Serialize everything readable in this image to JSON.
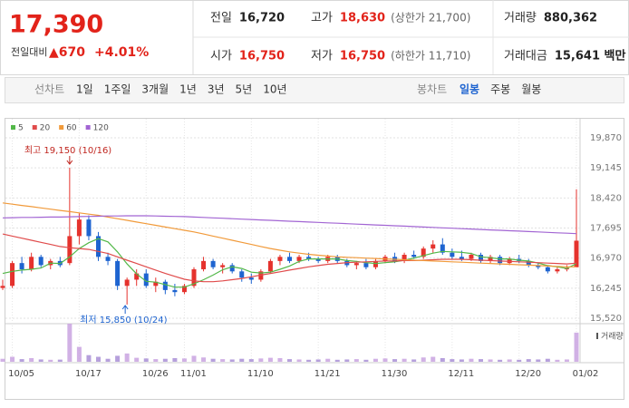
{
  "header": {
    "price": "17,390",
    "change_label": "전일대비",
    "change": "▲670",
    "change_pct": "+4.01%",
    "items": [
      {
        "label": "전일",
        "value": "16,720"
      },
      {
        "label": "고가",
        "value": "18,630",
        "extra": "(상한가 21,700)"
      },
      {
        "label": "거래량",
        "value": "880,362"
      },
      {
        "label": "시가",
        "value": "16,750"
      },
      {
        "label": "저가",
        "value": "16,750",
        "extra": "(하한가 11,710)"
      },
      {
        "label": "거래대금",
        "value": "15,641 백만"
      }
    ]
  },
  "tabs": {
    "line_label": "선차트",
    "line": [
      "1일",
      "1주일",
      "3개월",
      "1년",
      "3년",
      "5년",
      "10년"
    ],
    "candle_label": "봉차트",
    "candle": [
      "일봉",
      "주봉",
      "월봉"
    ],
    "active": "일봉"
  },
  "chart_data": {
    "type": "candlestick",
    "categories": [
      null,
      "10/05",
      null,
      null,
      null,
      null,
      null,
      null,
      "10/17",
      null,
      null,
      null,
      null,
      null,
      null,
      "10/26",
      null,
      null,
      null,
      "11/01",
      null,
      null,
      null,
      null,
      null,
      null,
      "11/10",
      null,
      null,
      null,
      null,
      null,
      null,
      "11/21",
      null,
      null,
      null,
      null,
      null,
      null,
      "11/30",
      null,
      null,
      null,
      null,
      null,
      null,
      "12/11",
      null,
      null,
      null,
      null,
      null,
      null,
      "12/20",
      null,
      null,
      null,
      null,
      null,
      "01/02"
    ],
    "open": [
      16250,
      16300,
      16850,
      16700,
      17000,
      16800,
      16900,
      16850,
      17500,
      17900,
      17500,
      17000,
      16900,
      16300,
      16450,
      16600,
      16300,
      16400,
      16200,
      16150,
      16300,
      16700,
      16900,
      16750,
      16800,
      16650,
      16500,
      16450,
      16650,
      16900,
      17000,
      16900,
      17000,
      16950,
      16900,
      17000,
      16900,
      16800,
      16850,
      16750,
      16900,
      17000,
      16900,
      17050,
      17000,
      17200,
      17300,
      17100,
      17000,
      16950,
      17050,
      16900,
      17000,
      16850,
      16950,
      16900,
      16800,
      16750,
      16650,
      16700,
      16750
    ],
    "high": [
      16450,
      16900,
      17000,
      17100,
      17050,
      16950,
      17000,
      19150,
      18050,
      18000,
      17600,
      17100,
      16950,
      16500,
      16700,
      16700,
      16500,
      16450,
      16350,
      16350,
      16750,
      17000,
      16950,
      16850,
      16850,
      16700,
      16600,
      16700,
      16950,
      17050,
      17100,
      17050,
      17100,
      17000,
      17050,
      17050,
      16950,
      16900,
      16950,
      16950,
      17050,
      17100,
      17100,
      17150,
      17250,
      17400,
      17450,
      17200,
      17150,
      17100,
      17100,
      17050,
      17050,
      17000,
      17050,
      16950,
      16850,
      16800,
      16750,
      16800,
      18630
    ],
    "low": [
      16200,
      16250,
      16600,
      16650,
      16750,
      16700,
      16750,
      16800,
      17300,
      17400,
      16900,
      16800,
      16200,
      15850,
      16300,
      16250,
      16150,
      16100,
      16050,
      16100,
      16250,
      16650,
      16700,
      16600,
      16600,
      16400,
      16350,
      16400,
      16600,
      16800,
      16850,
      16850,
      16900,
      16850,
      16850,
      16850,
      16750,
      16700,
      16700,
      16700,
      16850,
      16850,
      16850,
      16950,
      16950,
      17100,
      17050,
      16950,
      16900,
      16900,
      16850,
      16850,
      16800,
      16800,
      16850,
      16750,
      16700,
      16600,
      16600,
      16650,
      16750
    ],
    "close": [
      16300,
      16850,
      16700,
      17000,
      16800,
      16900,
      16800,
      17500,
      17900,
      17500,
      17000,
      16900,
      16300,
      16450,
      16600,
      16300,
      16400,
      16200,
      16150,
      16300,
      16700,
      16900,
      16750,
      16800,
      16650,
      16500,
      16450,
      16650,
      16900,
      17000,
      16900,
      17000,
      16950,
      16900,
      17000,
      16900,
      16800,
      16850,
      16750,
      16900,
      17000,
      16900,
      17050,
      17000,
      17200,
      17300,
      17100,
      17000,
      16950,
      17050,
      16900,
      17000,
      16850,
      16950,
      16900,
      16800,
      16750,
      16650,
      16700,
      16720,
      17390
    ],
    "volume": [
      90000,
      150000,
      80000,
      110000,
      70000,
      60000,
      65000,
      1150000,
      450000,
      200000,
      150000,
      90000,
      180000,
      250000,
      120000,
      100000,
      80000,
      90000,
      110000,
      100000,
      180000,
      130000,
      90000,
      80000,
      70000,
      90000,
      80000,
      100000,
      120000,
      110000,
      80000,
      70000,
      60000,
      70000,
      90000,
      60000,
      70000,
      80000,
      60000,
      90000,
      100000,
      80000,
      90000,
      70000,
      130000,
      150000,
      110000,
      80000,
      70000,
      90000,
      80000,
      70000,
      60000,
      70000,
      60000,
      80000,
      70000,
      90000,
      60000,
      70000,
      880362
    ],
    "volume_label": "거래량",
    "up_color": "#e5322d",
    "down_color": "#1e64d0",
    "series": [
      {
        "name": "5",
        "color": "#52b848",
        "values": [
          16600,
          16650,
          16680,
          16700,
          16730,
          16850,
          16840,
          17000,
          17200,
          17340,
          17440,
          17360,
          17120,
          16830,
          16590,
          16410,
          16390,
          16330,
          16270,
          16270,
          16350,
          16450,
          16560,
          16690,
          16760,
          16720,
          16630,
          16610,
          16630,
          16700,
          16780,
          16890,
          16950,
          16950,
          16950,
          16950,
          16910,
          16890,
          16860,
          16840,
          16860,
          16880,
          16920,
          16970,
          17030,
          17090,
          17130,
          17120,
          17110,
          17080,
          17000,
          16980,
          16950,
          16950,
          16920,
          16900,
          16850,
          16790,
          16760,
          16720,
          16840
        ]
      },
      {
        "name": "20",
        "color": "#e04b4b",
        "values": [
          17550,
          17500,
          17450,
          17400,
          17350,
          17300,
          17250,
          17220,
          17200,
          17180,
          17130,
          17080,
          17000,
          16920,
          16840,
          16760,
          16680,
          16600,
          16530,
          16460,
          16420,
          16400,
          16400,
          16420,
          16450,
          16480,
          16520,
          16560,
          16600,
          16640,
          16680,
          16720,
          16760,
          16790,
          16820,
          16840,
          16860,
          16870,
          16880,
          16890,
          16900,
          16900,
          16910,
          16910,
          16920,
          16930,
          16940,
          16940,
          16940,
          16930,
          16920,
          16910,
          16900,
          16890,
          16880,
          16870,
          16860,
          16850,
          16840,
          16830,
          16850
        ]
      },
      {
        "name": "60",
        "color": "#f19a3a",
        "values": [
          18300,
          18270,
          18240,
          18210,
          18180,
          18150,
          18120,
          18090,
          18060,
          18030,
          18000,
          17960,
          17920,
          17880,
          17840,
          17800,
          17760,
          17720,
          17680,
          17640,
          17600,
          17550,
          17500,
          17450,
          17400,
          17350,
          17300,
          17250,
          17200,
          17160,
          17120,
          17090,
          17060,
          17040,
          17020,
          17000,
          16990,
          16980,
          16970,
          16960,
          16950,
          16940,
          16930,
          16920,
          16910,
          16900,
          16890,
          16880,
          16870,
          16860,
          16850,
          16840,
          16830,
          16820,
          16810,
          16800,
          16790,
          16780,
          16770,
          16760,
          16760
        ]
      },
      {
        "name": "120",
        "color": "#a265d3",
        "values": [
          17940,
          17945,
          17950,
          17950,
          17955,
          17960,
          17960,
          17965,
          17970,
          17975,
          17980,
          17985,
          17985,
          17990,
          17990,
          17990,
          17985,
          17980,
          17975,
          17970,
          17960,
          17950,
          17940,
          17930,
          17920,
          17910,
          17900,
          17890,
          17880,
          17870,
          17860,
          17850,
          17840,
          17830,
          17820,
          17810,
          17800,
          17790,
          17780,
          17770,
          17760,
          17750,
          17740,
          17730,
          17720,
          17710,
          17700,
          17690,
          17680,
          17670,
          17660,
          17650,
          17640,
          17630,
          17620,
          17610,
          17600,
          17590,
          17580,
          17570,
          17560
        ]
      }
    ],
    "ylim": [
      15520,
      19870
    ],
    "yticks": [
      {
        "value": 15520,
        "label": "15,520"
      },
      {
        "value": 16245,
        "label": "16,245"
      },
      {
        "value": 16970,
        "label": "16,970"
      },
      {
        "value": 17695,
        "label": "17,695"
      },
      {
        "value": 18420,
        "label": "18,420"
      },
      {
        "value": 19145,
        "label": "19,145"
      },
      {
        "value": 19870,
        "label": "19,870"
      }
    ],
    "annotations": [
      "최고 19,150 (10/16)",
      "최저 15,850 (10/24)"
    ]
  }
}
